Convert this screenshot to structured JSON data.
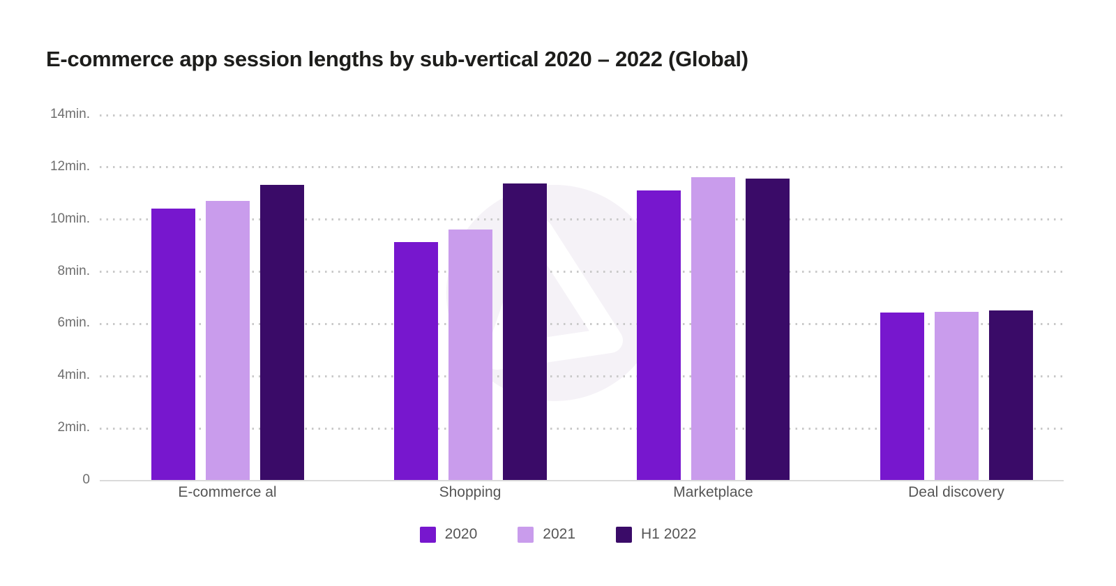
{
  "page": {
    "title": "E-commerce app session lengths by sub-vertical 2020 – 2022 (Global)"
  },
  "chart_data": {
    "type": "bar",
    "title": "E-commerce app session lengths by sub-vertical 2020 – 2022 (Global)",
    "categories": [
      "E-commerce al",
      "Shopping",
      "Marketplace",
      "Deal discovery"
    ],
    "series": [
      {
        "name": "2020",
        "color": "#7717CE",
        "values": [
          10.4,
          9.1,
          11.1,
          6.4
        ]
      },
      {
        "name": "2021",
        "color": "#C99CEC",
        "values": [
          10.7,
          9.6,
          11.6,
          6.45
        ]
      },
      {
        "name": "H1 2022",
        "color": "#3A0B68",
        "values": [
          11.3,
          11.35,
          11.55,
          6.5
        ]
      }
    ],
    "unit": "min",
    "ylim": [
      0,
      14
    ],
    "y_ticks": [
      {
        "value": 14,
        "label": "14min."
      },
      {
        "value": 12,
        "label": "12min."
      },
      {
        "value": 10,
        "label": "10min."
      },
      {
        "value": 8,
        "label": "8min."
      },
      {
        "value": 6,
        "label": "6min."
      },
      {
        "value": 4,
        "label": "4min."
      },
      {
        "value": 2,
        "label": "2min."
      },
      {
        "value": 0,
        "label": "0"
      }
    ],
    "grid": "dotted-horizontal",
    "legend_position": "bottom",
    "legend": [
      "2020",
      "2021",
      "H1 2022"
    ],
    "watermark": "appsflyer-logo",
    "colors": {
      "title_text": "#1D1D1B",
      "axis_text": "#6E6E6E",
      "category_text": "#555555",
      "grid_dots": "#C9C9C9",
      "baseline": "#DADADA",
      "watermark_circle": "#F5F2F7",
      "background": "#FFFFFF"
    }
  }
}
